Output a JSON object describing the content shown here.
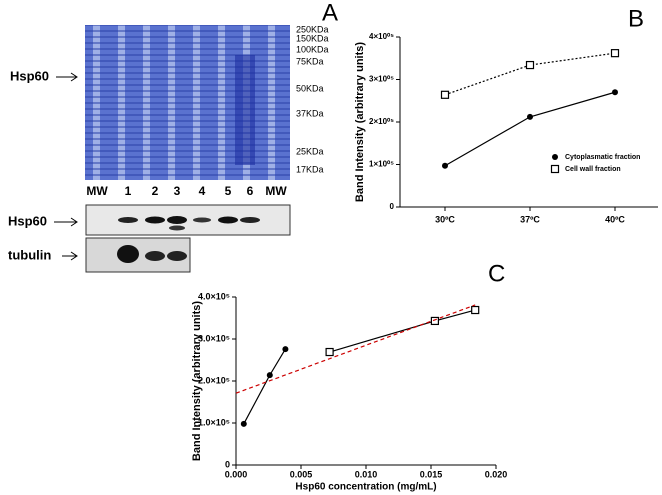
{
  "panel_a": {
    "label": "A",
    "markers": [
      "250KDa",
      "150KDa",
      "100KDa",
      "75KDa",
      "50KDa",
      "37KDa",
      "25KDa",
      "17KDa"
    ],
    "protein": "Hsp60",
    "lanes": [
      "MW",
      "1",
      "2",
      "3",
      "4",
      "5",
      "6",
      "MW"
    ],
    "blots": [
      "Hsp60",
      "tubulin"
    ]
  },
  "chart_data": [
    {
      "type": "line",
      "label": "B",
      "ylabel": "Band Intensity (arbitrary units)",
      "categories": [
        "30ºC",
        "37ºC",
        "40ºC"
      ],
      "ylim": [
        0,
        400000
      ],
      "yticks": [
        0,
        {
          "value": 100000,
          "label": "1×10⁰⁵"
        },
        {
          "value": 200000,
          "label": "2×10⁰⁵"
        },
        {
          "value": 300000,
          "label": "3×10⁰⁵"
        },
        {
          "value": 400000,
          "label": "4×10⁰⁵"
        }
      ],
      "legend": "lower right",
      "series": [
        {
          "name": "Cytoplasmatic fraction",
          "color": "#000000",
          "marker": "circle",
          "linestyle": "solid",
          "values": [
            97000,
            212000,
            270000
          ]
        },
        {
          "name": "Cell wall fraction",
          "color": "#000000",
          "marker": "square",
          "linestyle": "dotted",
          "values": [
            264000,
            334000,
            362000
          ]
        }
      ]
    },
    {
      "type": "line",
      "label": "C",
      "ylabel": "Band Intensity (arbitrary units)",
      "xlabel": "Hsp60 concentration (mg/mL)",
      "xlim": [
        0,
        0.02
      ],
      "xticks": [
        {
          "value": 0,
          "label": "0.000"
        },
        {
          "value": 0.005,
          "label": "0.005"
        },
        {
          "value": 0.01,
          "label": "0.010"
        },
        {
          "value": 0.015,
          "label": "0.015"
        },
        {
          "value": 0.02,
          "label": "0.020"
        }
      ],
      "ylim": [
        0,
        400000
      ],
      "yticks": [
        0,
        {
          "value": 100000,
          "label": "1.0×10⁵"
        },
        {
          "value": 200000,
          "label": "2.0×10⁵"
        },
        {
          "value": 300000,
          "label": "3.0×10⁵"
        },
        {
          "value": 400000,
          "label": "4.0×10⁵"
        }
      ],
      "series": [
        {
          "color": "#000000",
          "marker": "circle",
          "linestyle": "solid",
          "x": [
            0.0006,
            0.0026,
            0.0038
          ],
          "values": [
            98000,
            214000,
            276000
          ]
        },
        {
          "color": "#000000",
          "marker": "square",
          "linestyle": "solid",
          "x": [
            0.0072,
            0.0153,
            0.0184
          ],
          "values": [
            269000,
            343000,
            369000
          ]
        },
        {
          "color": "#cc0000",
          "linestyle": "dashed",
          "x": [
            0,
            0.0184
          ],
          "values": [
            171000,
            381000
          ]
        }
      ]
    }
  ]
}
